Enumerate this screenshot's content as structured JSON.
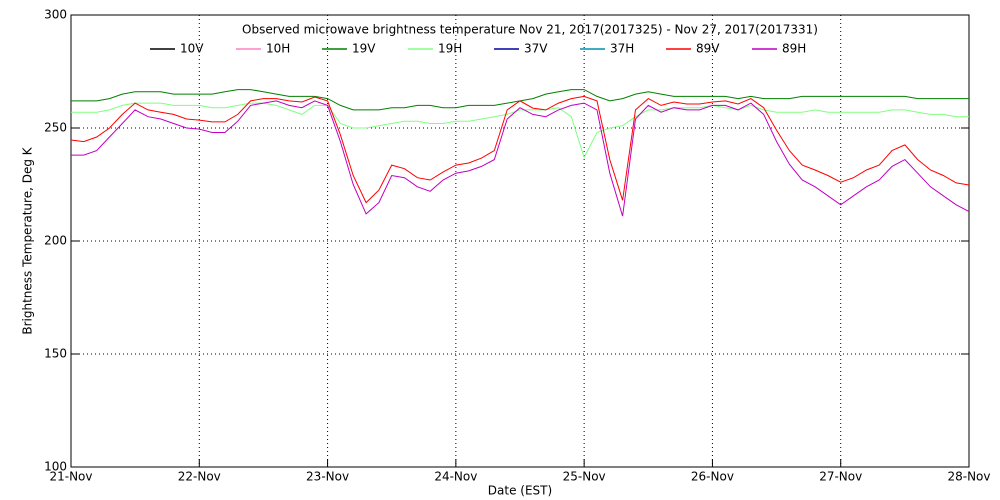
{
  "chart_data": {
    "type": "line",
    "title": "Observed microwave brightness temperature Nov 21, 2017(2017325) - Nov 27, 2017(2017331)",
    "x_label": "Date (EST)",
    "y_label": "Brightness Temperature, Deg K",
    "xlim": [
      0,
      7
    ],
    "xticks": [
      {
        "value": 0,
        "label": "21-Nov"
      },
      {
        "value": 1,
        "label": "22-Nov"
      },
      {
        "value": 2,
        "label": "23-Nov"
      },
      {
        "value": 3,
        "label": "24-Nov"
      },
      {
        "value": 4,
        "label": "25-Nov"
      },
      {
        "value": 5,
        "label": "26-Nov"
      },
      {
        "value": 6,
        "label": "27-Nov"
      },
      {
        "value": 7,
        "label": "28-Nov"
      }
    ],
    "ylim": [
      100,
      300
    ],
    "yticks": [
      100,
      150,
      200,
      250,
      300
    ],
    "grid": true,
    "x": [
      0,
      0.1,
      0.2,
      0.3,
      0.4,
      0.5,
      0.6,
      0.7,
      0.8,
      0.9,
      1,
      1.1,
      1.2,
      1.3,
      1.4,
      1.5,
      1.6,
      1.7,
      1.8,
      1.9,
      2,
      2.1,
      2.2,
      2.3,
      2.4,
      2.5,
      2.6,
      2.7,
      2.8,
      2.9,
      3,
      3.1,
      3.2,
      3.3,
      3.4,
      3.5,
      3.6,
      3.7,
      3.8,
      3.9,
      4,
      4.1,
      4.2,
      4.3,
      4.4,
      4.5,
      4.6,
      4.7,
      4.8,
      4.9,
      5,
      5.1,
      5.2,
      5.3,
      5.4,
      5.5,
      5.6,
      5.7,
      5.8,
      5.9,
      6,
      6.1,
      6.2,
      6.3,
      6.4,
      6.5,
      6.6,
      6.7,
      6.8,
      6.9,
      7
    ],
    "series": [
      {
        "name": "10V",
        "color": "#000000"
      },
      {
        "name": "10H",
        "color": "#ff80c0"
      },
      {
        "name": "19V",
        "color": "#008000",
        "values": [
          262,
          262,
          262,
          263,
          265,
          266,
          266,
          266,
          265,
          265,
          265,
          265,
          266,
          267,
          267,
          266,
          265,
          264,
          264,
          264,
          263,
          260,
          258,
          258,
          258,
          259,
          259,
          260,
          260,
          259,
          259,
          260,
          260,
          260,
          261,
          262,
          263,
          265,
          266,
          267,
          267,
          264,
          262,
          263,
          265,
          266,
          265,
          264,
          264,
          264,
          264,
          264,
          263,
          264,
          263,
          263,
          263,
          264,
          264,
          264,
          264,
          264,
          264,
          264,
          264,
          264,
          263,
          263,
          263,
          263,
          263
        ]
      },
      {
        "name": "19H",
        "color": "#80ff80",
        "values": [
          257,
          257,
          257,
          258,
          260,
          261,
          261,
          261,
          260,
          260,
          260,
          259,
          259,
          260,
          261,
          261,
          260,
          258,
          256,
          260,
          260,
          252,
          250,
          250,
          251,
          252,
          253,
          253,
          252,
          252,
          253,
          253,
          254,
          255,
          256,
          258,
          258,
          258,
          259,
          255,
          237,
          248,
          250,
          251,
          255,
          258,
          258,
          259,
          259,
          259,
          260,
          259,
          258,
          260,
          258,
          257,
          257,
          257,
          258,
          257,
          257,
          257,
          257,
          257,
          258,
          258,
          257,
          256,
          256,
          255,
          255
        ]
      },
      {
        "name": "37V",
        "color": "#0000a0"
      },
      {
        "name": "37H",
        "color": "#0090b0"
      },
      {
        "name": "89V",
        "color": "#ff0000",
        "values": [
          244.7,
          244,
          246,
          250,
          256,
          261,
          258,
          257,
          256,
          254,
          253.5,
          252.7,
          252.7,
          256,
          262,
          263,
          263,
          262,
          261.5,
          263.7,
          262,
          247,
          229,
          217,
          222.5,
          233.6,
          232,
          228,
          227,
          230.5,
          233.6,
          234.5,
          236.7,
          240,
          258,
          262,
          258.8,
          258,
          261,
          263,
          264,
          262,
          236,
          218,
          258,
          263,
          260,
          261.5,
          260.6,
          260.6,
          261.5,
          262,
          260.6,
          263,
          259,
          249,
          240,
          233.6,
          231.4,
          229,
          226,
          228,
          231.4,
          233.6,
          240,
          242.5,
          236,
          231.4,
          229,
          225.7,
          224.8
        ]
      },
      {
        "name": "89H",
        "color": "#c000c0",
        "values": [
          238,
          238,
          240,
          246,
          252,
          258,
          255,
          254,
          252,
          250,
          249.5,
          248,
          248,
          253,
          260,
          261,
          262,
          260,
          259,
          262,
          260,
          244,
          225,
          212,
          217,
          229,
          228,
          224,
          222,
          227,
          230,
          231,
          233,
          236,
          254,
          259,
          256,
          255,
          258,
          260,
          261,
          258,
          230,
          211,
          254,
          260,
          257,
          259,
          258,
          258,
          260,
          260,
          258,
          261,
          256,
          244,
          234,
          227,
          224,
          220,
          216,
          220,
          224,
          227,
          233,
          236,
          230,
          224,
          220,
          216,
          213
        ]
      }
    ]
  }
}
